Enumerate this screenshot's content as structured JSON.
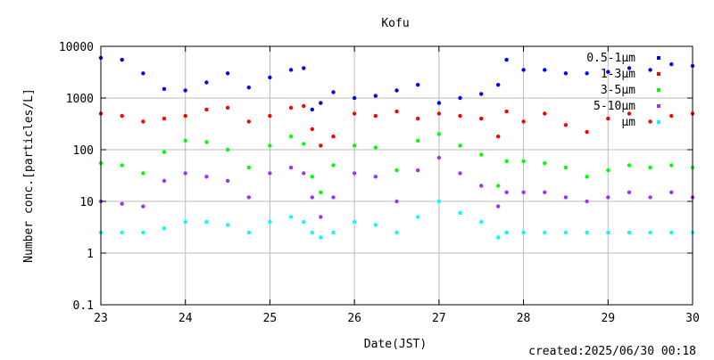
{
  "chart_data": {
    "type": "scatter",
    "title": "Kofu",
    "xlabel": "Date(JST)",
    "ylabel": "Number conc.[particles/L]",
    "footer": "created:2025/06/30 00:18",
    "x_ticks": [
      "23",
      "24",
      "25",
      "26",
      "27",
      "28",
      "29",
      "30"
    ],
    "y_ticks": [
      "0.1",
      "1",
      "10",
      "100",
      "1000",
      "10000"
    ],
    "xlim": [
      23,
      30
    ],
    "ylim": [
      0.1,
      10000
    ],
    "y_scale": "log",
    "legend_position": "top-right",
    "series": [
      {
        "name": "0.5-1μm",
        "color": "#0000ff",
        "x": [
          23.0,
          23.25,
          23.5,
          23.75,
          24.0,
          24.25,
          24.5,
          24.75,
          25.0,
          25.25,
          25.4,
          25.5,
          25.6,
          25.75,
          26.0,
          26.25,
          26.5,
          26.75,
          27.0,
          27.25,
          27.5,
          27.7,
          27.8,
          28.0,
          28.25,
          28.5,
          28.75,
          29.0,
          29.25,
          29.5,
          29.75,
          30.0
        ],
        "values": [
          6000,
          5500,
          3000,
          1500,
          1400,
          2000,
          3000,
          1600,
          2500,
          3500,
          3800,
          600,
          800,
          1300,
          1000,
          1100,
          1400,
          1800,
          800,
          1000,
          1200,
          1800,
          5500,
          3500,
          3500,
          3000,
          3000,
          3200,
          3800,
          3500,
          4500,
          4200
        ]
      },
      {
        "name": "1-3μm",
        "color": "#ff0000",
        "x": [
          23.0,
          23.25,
          23.5,
          23.75,
          24.0,
          24.25,
          24.5,
          24.75,
          25.0,
          25.25,
          25.4,
          25.5,
          25.6,
          25.75,
          26.0,
          26.25,
          26.5,
          26.75,
          27.0,
          27.25,
          27.5,
          27.7,
          27.8,
          28.0,
          28.25,
          28.5,
          28.75,
          29.0,
          29.25,
          29.5,
          29.75,
          30.0
        ],
        "values": [
          500,
          450,
          350,
          400,
          450,
          600,
          650,
          350,
          450,
          650,
          700,
          250,
          120,
          180,
          500,
          450,
          550,
          400,
          500,
          450,
          400,
          180,
          550,
          350,
          500,
          300,
          220,
          400,
          500,
          350,
          450,
          500
        ]
      },
      {
        "name": "3-5μm",
        "color": "#00ff00",
        "x": [
          23.0,
          23.25,
          23.5,
          23.75,
          24.0,
          24.25,
          24.5,
          24.75,
          25.0,
          25.25,
          25.4,
          25.5,
          25.6,
          25.75,
          26.0,
          26.25,
          26.5,
          26.75,
          27.0,
          27.25,
          27.5,
          27.7,
          27.8,
          28.0,
          28.25,
          28.5,
          28.75,
          29.0,
          29.25,
          29.5,
          29.75,
          30.0
        ],
        "values": [
          55,
          50,
          35,
          90,
          150,
          140,
          100,
          45,
          120,
          180,
          130,
          30,
          15,
          50,
          120,
          110,
          40,
          150,
          200,
          120,
          80,
          20,
          60,
          60,
          55,
          45,
          30,
          40,
          50,
          45,
          50,
          45
        ]
      },
      {
        "name": "5-10μm",
        "color": "#9933ff",
        "x": [
          23.0,
          23.25,
          23.5,
          23.75,
          24.0,
          24.25,
          24.5,
          24.75,
          25.0,
          25.25,
          25.4,
          25.5,
          25.6,
          25.75,
          26.0,
          26.25,
          26.5,
          26.75,
          27.0,
          27.25,
          27.5,
          27.7,
          27.8,
          28.0,
          28.25,
          28.5,
          28.75,
          29.0,
          29.25,
          29.5,
          29.75,
          30.0
        ],
        "values": [
          10,
          9,
          8,
          25,
          35,
          30,
          25,
          12,
          35,
          45,
          35,
          12,
          5,
          12,
          35,
          30,
          10,
          40,
          70,
          35,
          20,
          8,
          15,
          15,
          15,
          12,
          10,
          12,
          15,
          12,
          15,
          12
        ]
      },
      {
        "name": "μm",
        "color": "#00ffff",
        "x": [
          23.0,
          23.25,
          23.5,
          23.75,
          24.0,
          24.25,
          24.5,
          24.75,
          25.0,
          25.25,
          25.4,
          25.5,
          25.6,
          25.75,
          26.0,
          26.25,
          26.5,
          26.75,
          27.0,
          27.25,
          27.5,
          27.7,
          27.8,
          28.0,
          28.25,
          28.5,
          28.75,
          29.0,
          29.25,
          29.5,
          29.75,
          30.0
        ],
        "values": [
          2.5,
          2.5,
          2.5,
          3,
          4,
          4,
          3.5,
          2.5,
          4,
          5,
          4,
          2.5,
          2,
          2.5,
          4,
          3.5,
          2.5,
          5,
          10,
          6,
          4,
          2,
          2.5,
          2.5,
          2.5,
          2.5,
          2.5,
          2.5,
          2.5,
          2.5,
          2.5,
          2.5
        ]
      }
    ]
  }
}
